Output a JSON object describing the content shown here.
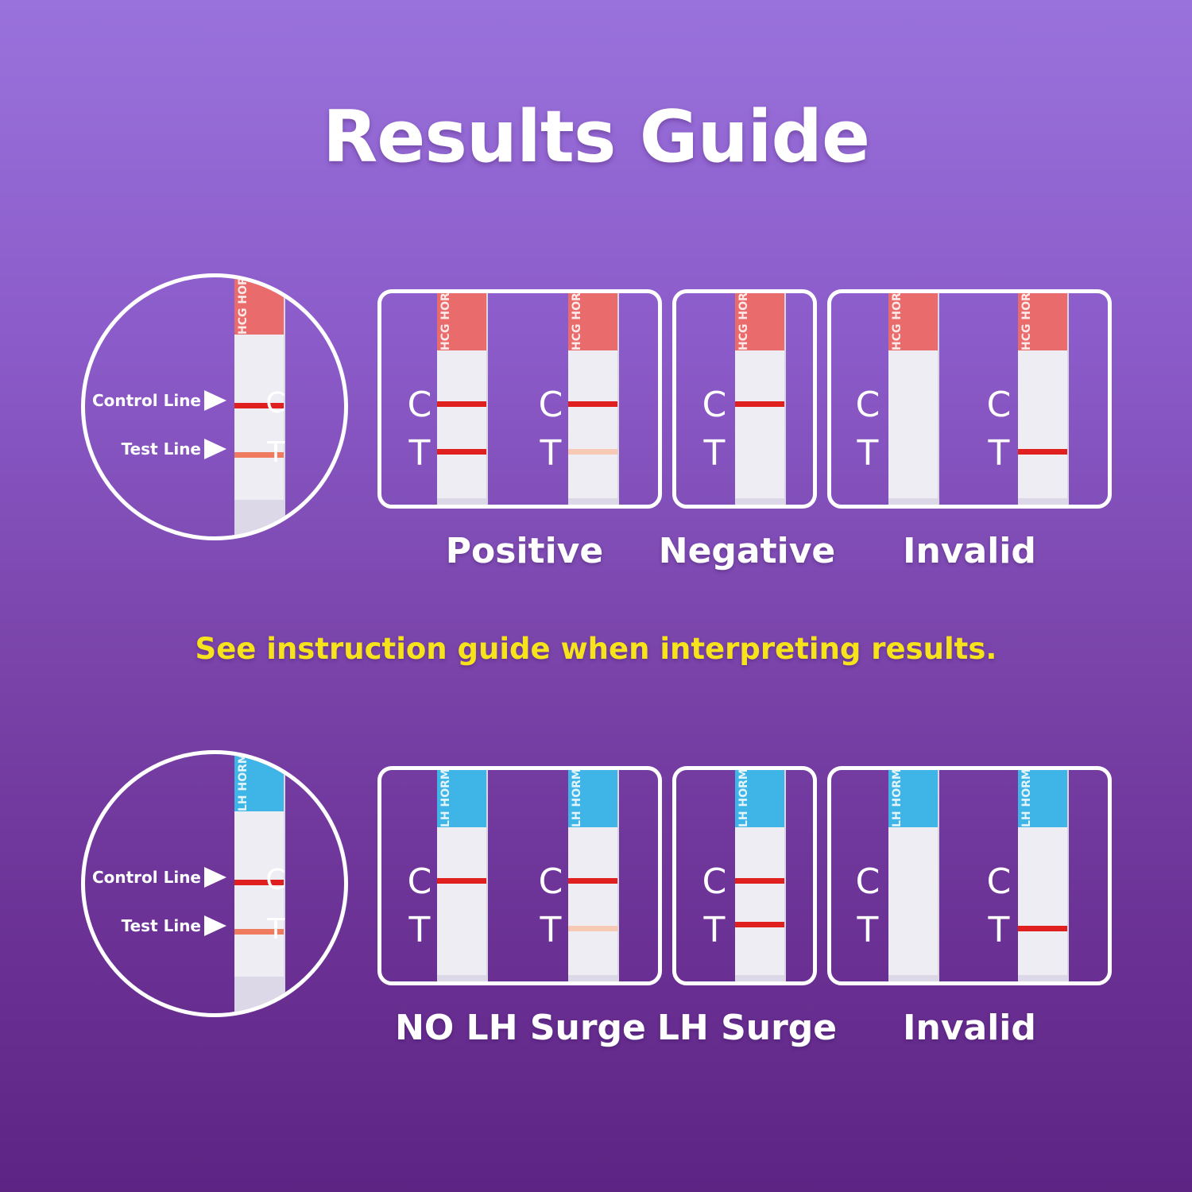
{
  "title": "Results Guide",
  "note": "See instruction guide when interpreting results.",
  "colors": {
    "title": "#ffffff",
    "note": "#f7e31b",
    "control_line": "#e0201e",
    "faint_line": "#f7c8b4",
    "hcg_cap": "#ea6b6b",
    "lh_cap": "#3fb4e6"
  },
  "hcg": {
    "strip_text": "HCG HORMONElife",
    "legend": {
      "control": "Control Line",
      "test": "Test Line",
      "c": "C",
      "t": "T"
    },
    "results": [
      {
        "label": "Positive",
        "letters": {
          "c": "C",
          "t": "T"
        }
      },
      {
        "label": "Negative",
        "letters": {
          "c": "C",
          "t": "T"
        }
      },
      {
        "label": "Invalid",
        "letters": {
          "c": "C",
          "t": "T"
        }
      }
    ]
  },
  "lh": {
    "strip_text": "LH HORMONElife",
    "legend": {
      "control": "Control Line",
      "test": "Test Line",
      "c": "C",
      "t": "T"
    },
    "results": [
      {
        "label": "NO LH Surge",
        "letters": {
          "c": "C",
          "t": "T"
        }
      },
      {
        "label": "LH Surge",
        "letters": {
          "c": "C",
          "t": "T"
        }
      },
      {
        "label": "Invalid",
        "letters": {
          "c": "C",
          "t": "T"
        }
      }
    ]
  }
}
